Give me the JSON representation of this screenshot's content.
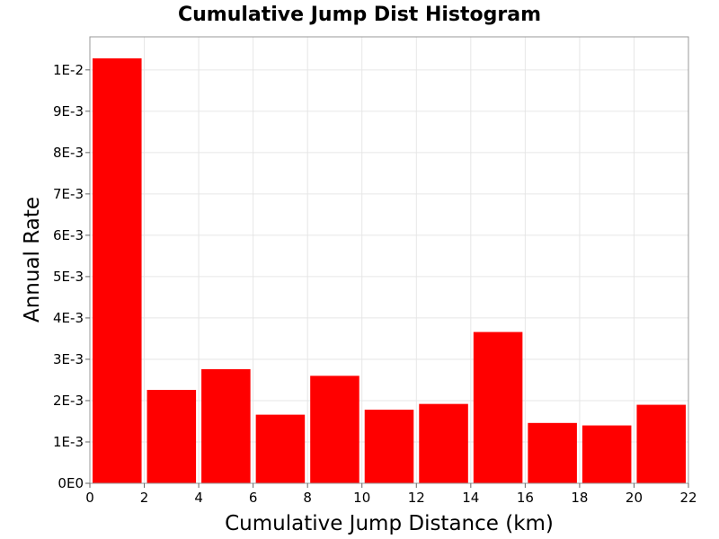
{
  "chart_data": {
    "type": "bar",
    "title": "Cumulative Jump Dist Histogram",
    "xlabel": "Cumulative Jump Distance (km)",
    "ylabel": "Annual Rate",
    "xlim": [
      0,
      22
    ],
    "ylim": [
      0,
      0.0108
    ],
    "grid": true,
    "bar_color": "#ff0000",
    "x_ticks": [
      {
        "value": 0,
        "label": "0"
      },
      {
        "value": 2,
        "label": "2"
      },
      {
        "value": 4,
        "label": "4"
      },
      {
        "value": 6,
        "label": "6"
      },
      {
        "value": 8,
        "label": "8"
      },
      {
        "value": 10,
        "label": "10"
      },
      {
        "value": 12,
        "label": "12"
      },
      {
        "value": 14,
        "label": "14"
      },
      {
        "value": 16,
        "label": "16"
      },
      {
        "value": 18,
        "label": "18"
      },
      {
        "value": 20,
        "label": "20"
      },
      {
        "value": 22,
        "label": "22"
      }
    ],
    "y_ticks": [
      {
        "value": 0,
        "label": "0E0"
      },
      {
        "value": 0.001,
        "label": "1E-3"
      },
      {
        "value": 0.002,
        "label": "2E-3"
      },
      {
        "value": 0.003,
        "label": "3E-3"
      },
      {
        "value": 0.004,
        "label": "4E-3"
      },
      {
        "value": 0.005,
        "label": "5E-3"
      },
      {
        "value": 0.006,
        "label": "6E-3"
      },
      {
        "value": 0.007,
        "label": "7E-3"
      },
      {
        "value": 0.008,
        "label": "8E-3"
      },
      {
        "value": 0.009,
        "label": "9E-3"
      },
      {
        "value": 0.01,
        "label": "1E-2"
      }
    ],
    "bins": [
      {
        "x0": 0,
        "x1": 2,
        "value": 0.01028
      },
      {
        "x0": 2,
        "x1": 4,
        "value": 0.00226
      },
      {
        "x0": 4,
        "x1": 6,
        "value": 0.00276
      },
      {
        "x0": 6,
        "x1": 8,
        "value": 0.00166
      },
      {
        "x0": 8,
        "x1": 10,
        "value": 0.0026
      },
      {
        "x0": 10,
        "x1": 12,
        "value": 0.00178
      },
      {
        "x0": 12,
        "x1": 14,
        "value": 0.00192
      },
      {
        "x0": 14,
        "x1": 16,
        "value": 0.00366
      },
      {
        "x0": 16,
        "x1": 18,
        "value": 0.00146
      },
      {
        "x0": 18,
        "x1": 20,
        "value": 0.0014
      },
      {
        "x0": 20,
        "x1": 22,
        "value": 0.0019
      }
    ]
  }
}
